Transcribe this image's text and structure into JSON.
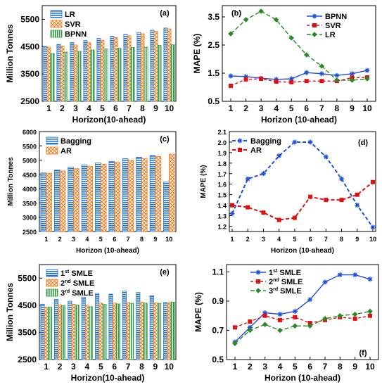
{
  "chart_data": [
    {
      "panel": "(a)",
      "type": "bar",
      "categories": [
        "1",
        "2",
        "3",
        "4",
        "5",
        "6",
        "7",
        "8",
        "9",
        "10"
      ],
      "series": [
        {
          "name": "LR",
          "values": [
            4500,
            4580,
            4650,
            4720,
            4800,
            4880,
            4950,
            5020,
            5100,
            5180
          ]
        },
        {
          "name": "SVR",
          "values": [
            4480,
            4520,
            4560,
            4640,
            4730,
            4830,
            4900,
            4970,
            5060,
            5150
          ]
        },
        {
          "name": "BPNN",
          "values": [
            4250,
            4300,
            4330,
            4380,
            4420,
            4440,
            4470,
            4480,
            4550,
            4570
          ]
        }
      ],
      "xlabel": "Horizon(10-ahead)",
      "ylabel": "Million Tonnes",
      "ylim": [
        2500,
        6000
      ],
      "yticks": [
        "2500",
        "3500",
        "4500",
        "5500"
      ],
      "legend_position": "top-left",
      "grid": false
    },
    {
      "panel": "(b)",
      "type": "line",
      "x": [
        "1",
        "2",
        "3",
        "4",
        "5",
        "6",
        "7",
        "8",
        "9",
        "10"
      ],
      "series": [
        {
          "name": "BPNN",
          "values": [
            1.4,
            1.38,
            1.32,
            1.28,
            1.3,
            1.52,
            1.48,
            1.42,
            1.48,
            1.6
          ]
        },
        {
          "name": "SVR",
          "values": [
            1.05,
            1.28,
            1.3,
            1.2,
            1.18,
            1.22,
            1.22,
            1.22,
            1.34,
            1.35
          ]
        },
        {
          "name": "LR",
          "values": [
            2.9,
            3.4,
            3.7,
            3.4,
            2.75,
            2.15,
            1.75,
            1.25,
            1.25,
            1.3
          ]
        }
      ],
      "xlabel": "Horizon (10-ahead)",
      "ylabel": "MAPE (%)",
      "ylim": [
        0.5,
        3.9
      ],
      "yticks": [
        "0.5",
        "1.5",
        "2.5",
        "3.5"
      ],
      "legend_position": "top-right",
      "grid": false
    },
    {
      "panel": "(c)",
      "type": "bar",
      "categories": [
        "1",
        "2",
        "3",
        "4",
        "5",
        "6",
        "7",
        "8",
        "9",
        "10"
      ],
      "series": [
        {
          "name": "Bagging",
          "values": [
            4550,
            4650,
            4750,
            4830,
            4900,
            4950,
            5050,
            5100,
            5160,
            4230
          ]
        },
        {
          "name": "AR",
          "values": [
            4540,
            4620,
            4700,
            4780,
            4860,
            4920,
            4990,
            5050,
            5130,
            5210
          ]
        }
      ],
      "xlabel": "Horizon (10-ahead)",
      "ylabel": "Million Tonnes",
      "ylim": [
        2500,
        6000
      ],
      "yticks": [
        "2500",
        "3000",
        "3500",
        "4000",
        "4500",
        "5000",
        "5500",
        "6000"
      ],
      "legend_position": "top-left",
      "grid": false
    },
    {
      "panel": "(d)",
      "type": "line",
      "x": [
        "1",
        "2",
        "3",
        "4",
        "5",
        "6",
        "7",
        "8",
        "9",
        "10"
      ],
      "series": [
        {
          "name": "Bagging",
          "values": [
            1.32,
            1.65,
            1.7,
            1.87,
            2.0,
            2.0,
            1.86,
            1.65,
            1.4,
            1.19
          ]
        },
        {
          "name": "AR",
          "values": [
            1.4,
            1.38,
            1.33,
            1.26,
            1.28,
            1.48,
            1.45,
            1.45,
            1.5,
            1.62
          ]
        }
      ],
      "xlabel": "Horizon (10-ahead)",
      "ylabel": "MAPE (%)",
      "ylim": [
        1.15,
        2.1
      ],
      "yticks": [
        "1.2",
        "1.3",
        "1.4",
        "1.5",
        "1.6",
        "1.7",
        "1.8",
        "1.9",
        "2.0",
        "2.1"
      ],
      "legend_position": "top-left",
      "grid": false
    },
    {
      "panel": "(e)",
      "type": "bar",
      "categories": [
        "1",
        "2",
        "3",
        "4",
        "5",
        "6",
        "7",
        "8",
        "9",
        "10"
      ],
      "series": [
        {
          "name": "1st SMLE",
          "label_base": "1",
          "label_sup": "st",
          "label_rest": " SMLE",
          "values": [
            4540,
            4720,
            4650,
            4800,
            4940,
            4910,
            5020,
            4970,
            4860,
            4600
          ]
        },
        {
          "name": "2nd SMLE",
          "label_base": "2",
          "label_sup": "nd",
          "label_rest": " SMLE",
          "values": [
            4440,
            4520,
            4540,
            4500,
            4580,
            4580,
            4600,
            4610,
            4590,
            4590
          ]
        },
        {
          "name": "3rd SMLE",
          "label_base": "3",
          "label_sup": "rd",
          "label_rest": " SMLE",
          "values": [
            4430,
            4480,
            4510,
            4450,
            4530,
            4550,
            4570,
            4580,
            4570,
            4620
          ]
        }
      ],
      "xlabel": "Horizon(10-ahead)",
      "ylabel": "Million Tonnes",
      "ylim": [
        2500,
        6000
      ],
      "yticks": [
        "2500",
        "3500",
        "4500",
        "5500"
      ],
      "legend_position": "top-left",
      "grid": false
    },
    {
      "panel": "(f)",
      "type": "line",
      "x": [
        "1",
        "2",
        "3",
        "4",
        "5",
        "6",
        "7",
        "8",
        "9",
        "10"
      ],
      "series": [
        {
          "name": "1st SMLE",
          "label_base": "1",
          "label_sup": "st",
          "label_rest": " SMLE",
          "values": [
            0.62,
            0.72,
            0.82,
            0.81,
            0.83,
            0.91,
            1.03,
            1.08,
            1.08,
            1.05
          ]
        },
        {
          "name": "2nd SMLE",
          "label_base": "2",
          "label_sup": "nd",
          "label_rest": " SMLE",
          "values": [
            0.72,
            0.76,
            0.8,
            0.77,
            0.79,
            0.75,
            0.77,
            0.79,
            0.78,
            0.8
          ]
        },
        {
          "name": "3rd SMLE",
          "label_base": "3",
          "label_sup": "rd",
          "label_rest": " SMLE",
          "values": [
            0.61,
            0.7,
            0.74,
            0.7,
            0.73,
            0.73,
            0.78,
            0.8,
            0.81,
            0.83
          ]
        }
      ],
      "xlabel": "Horizon (10-ahead)",
      "ylabel": "MAPE (%)",
      "ylim": [
        0.5,
        1.15
      ],
      "yticks": [
        "0.5",
        "0.7",
        "0.9",
        "1.1"
      ],
      "legend_position": "top-left",
      "grid": false
    }
  ],
  "colors": {
    "blue": "#1f6fd6",
    "orange": "#f07a1a",
    "green": "#2e9e44",
    "red": "#e01010",
    "dark_green": "#2a8a2a",
    "line_blue": "#1f4fd6"
  }
}
